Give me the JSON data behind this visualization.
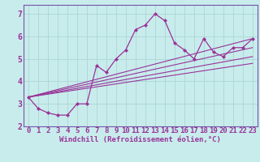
{
  "xlabel": "Windchill (Refroidissement éolien,°C)",
  "background_color": "#c8ecec",
  "grid_color": "#b0d8d8",
  "line_color": "#993399",
  "spine_color": "#7755aa",
  "xlim": [
    -0.5,
    23.5
  ],
  "ylim": [
    2.0,
    7.4
  ],
  "yticks": [
    2,
    3,
    4,
    5,
    6,
    7
  ],
  "xticks": [
    0,
    1,
    2,
    3,
    4,
    5,
    6,
    7,
    8,
    9,
    10,
    11,
    12,
    13,
    14,
    15,
    16,
    17,
    18,
    19,
    20,
    21,
    22,
    23
  ],
  "main_x": [
    0,
    1,
    2,
    3,
    4,
    5,
    6,
    7,
    8,
    9,
    10,
    11,
    12,
    13,
    14,
    15,
    16,
    17,
    18,
    19,
    20,
    21,
    22,
    23
  ],
  "main_y": [
    3.3,
    2.8,
    2.6,
    2.5,
    2.5,
    3.0,
    3.0,
    4.7,
    4.4,
    5.0,
    5.4,
    6.3,
    6.5,
    7.0,
    6.7,
    5.7,
    5.4,
    5.0,
    5.9,
    5.3,
    5.1,
    5.5,
    5.5,
    5.9
  ],
  "straight_lines": [
    {
      "x": [
        0,
        23
      ],
      "y": [
        3.3,
        5.9
      ]
    },
    {
      "x": [
        0,
        23
      ],
      "y": [
        3.3,
        5.5
      ]
    },
    {
      "x": [
        0,
        23
      ],
      "y": [
        3.3,
        5.1
      ]
    },
    {
      "x": [
        0,
        23
      ],
      "y": [
        3.3,
        4.8
      ]
    }
  ],
  "tick_fontsize": 6.5,
  "xlabel_fontsize": 6.5
}
